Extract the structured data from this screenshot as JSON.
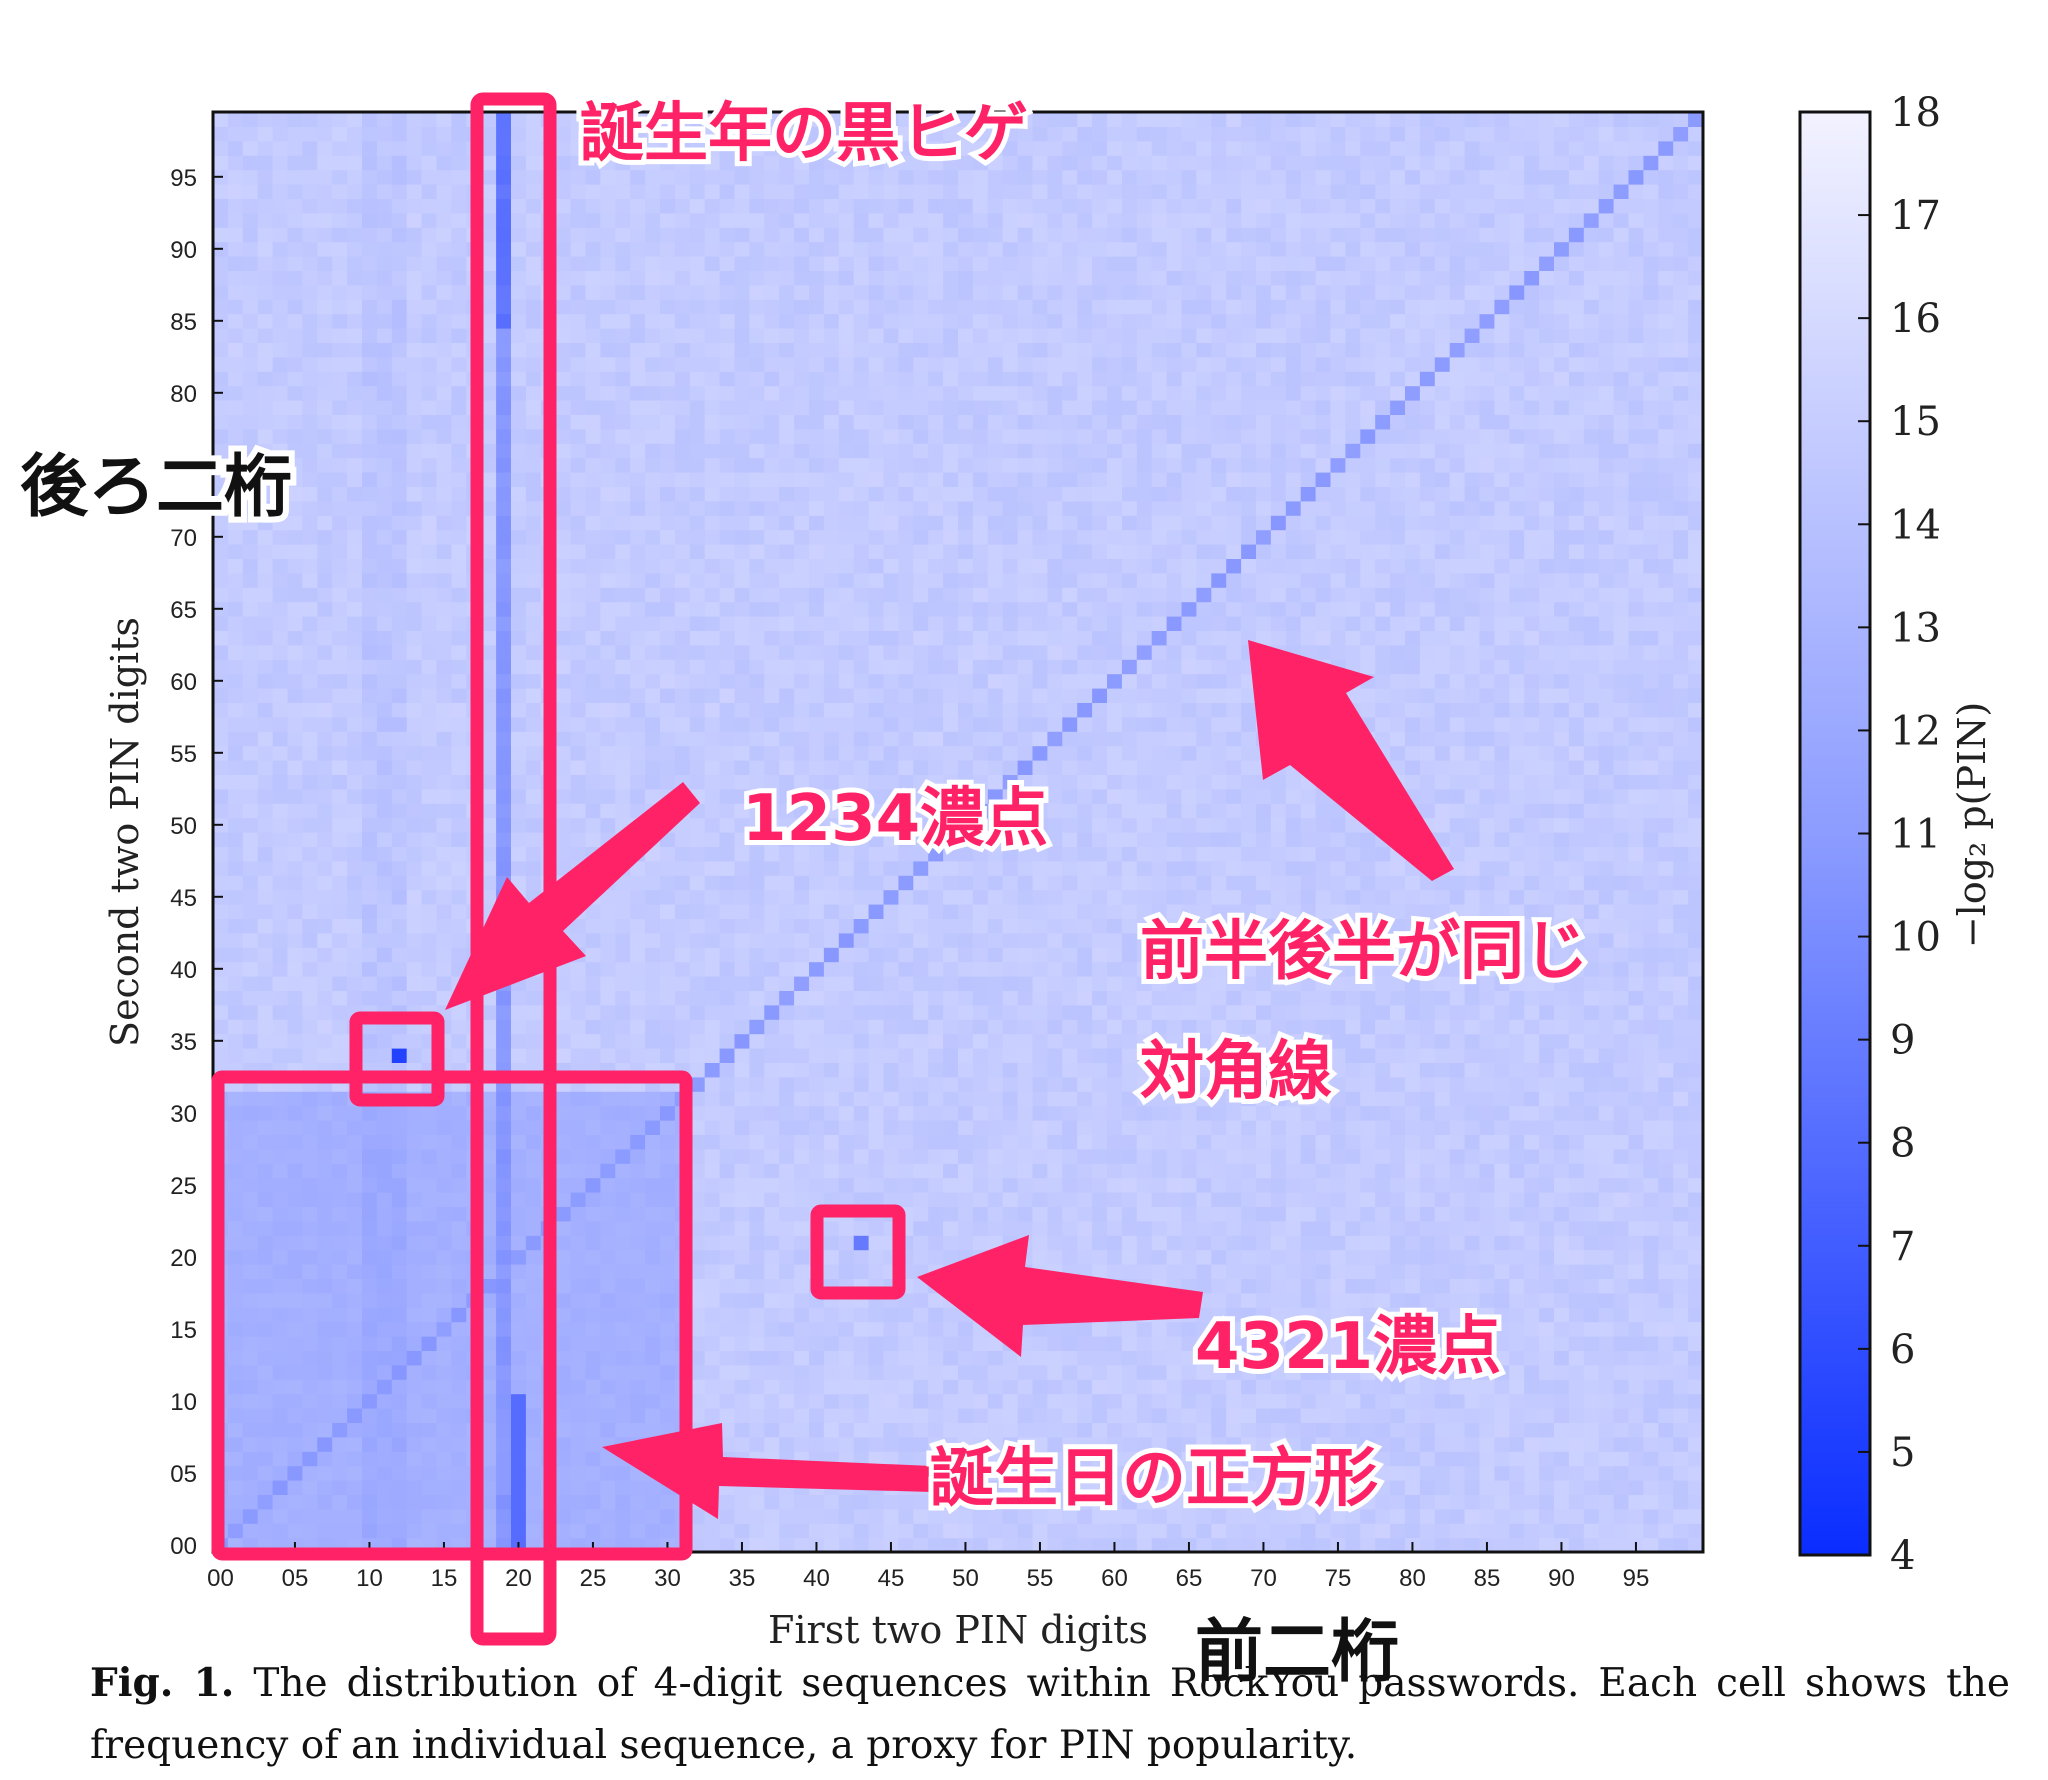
{
  "chart_data": {
    "type": "heatmap",
    "xlabel": "First two PIN digits",
    "ylabel": "Second two PIN digits",
    "x_tick_labels": [
      "00",
      "05",
      "10",
      "15",
      "20",
      "25",
      "30",
      "35",
      "40",
      "45",
      "50",
      "55",
      "60",
      "65",
      "70",
      "75",
      "80",
      "85",
      "90",
      "95"
    ],
    "y_tick_labels": [
      "00",
      "05",
      "10",
      "15",
      "20",
      "25",
      "30",
      "35",
      "40",
      "45",
      "50",
      "55",
      "60",
      "65",
      "70",
      "75",
      "80",
      "85",
      "90",
      "95"
    ],
    "xlim": [
      0,
      99
    ],
    "ylim": [
      0,
      99
    ],
    "value_label": "−log₂ p(PIN)",
    "value_range": [
      4,
      18
    ],
    "colorbar_ticks": [
      "4",
      "5",
      "6",
      "7",
      "8",
      "9",
      "10",
      "11",
      "12",
      "13",
      "14",
      "15",
      "16",
      "17",
      "18"
    ],
    "color_low": "#0a2dff",
    "color_high": "#f2f2ff",
    "background_value": 15.2,
    "highlights": {
      "birth_year_column_first": 19,
      "birth_year_column_value": 11.5,
      "birth_square_max": 31,
      "birth_square_value": 13.3,
      "diagonal_value": 11.8,
      "pin_1234": {
        "first": 12,
        "second": 34,
        "value": 5.5
      },
      "pin_4321": {
        "first": 43,
        "second": 21,
        "value": 9.5
      }
    }
  },
  "annotations": {
    "birth_year": "誕生年の黒ヒゲ",
    "pin_1234": "1234濃点",
    "diagonal_line1": "前半後半が同じ",
    "diagonal_line2": "対角線",
    "pin_4321": "4321濃点",
    "birth_square": "誕生日の正方形",
    "second_digits": "後ろ二桁",
    "first_digits": "前二桁"
  },
  "caption": {
    "label": "Fig. 1.",
    "text": " The distribution of 4-digit sequences within RockYou passwords. Each cell shows the frequency of an individual sequence, a proxy for PIN popularity."
  },
  "colors": {
    "annotation": "#ff2266",
    "axis": "#111111"
  }
}
